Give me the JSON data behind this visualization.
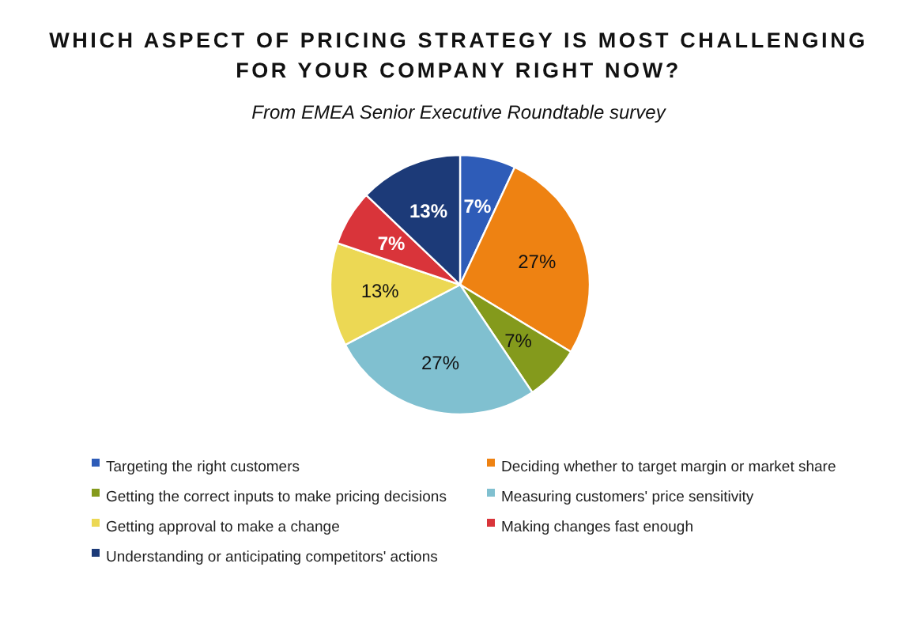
{
  "chart_data": {
    "type": "pie",
    "title": "WHICH ASPECT OF PRICING STRATEGY IS MOST CHALLENGING\nFOR YOUR COMPANY RIGHT NOW?",
    "subtitle": "From EMEA Senior Executive Roundtable survey",
    "categories": [
      "Targeting the right customers",
      "Deciding whether to target margin or market share",
      "Getting the correct inputs to make pricing decisions",
      "Measuring customers' price sensitivity",
      "Getting approval to make a change",
      "Making changes fast enough",
      "Understanding or anticipating competitors' actions"
    ],
    "values": [
      7,
      27,
      7,
      27,
      13,
      7,
      13
    ],
    "colors": [
      "#2e5cb8",
      "#ee8212",
      "#849a1c",
      "#80c0d0",
      "#ecd854",
      "#d9343a",
      "#1c3a78"
    ],
    "value_labels": [
      "7%",
      "27%",
      "7%",
      "27%",
      "13%",
      "7%",
      "13%"
    ],
    "legend": "bottom"
  }
}
